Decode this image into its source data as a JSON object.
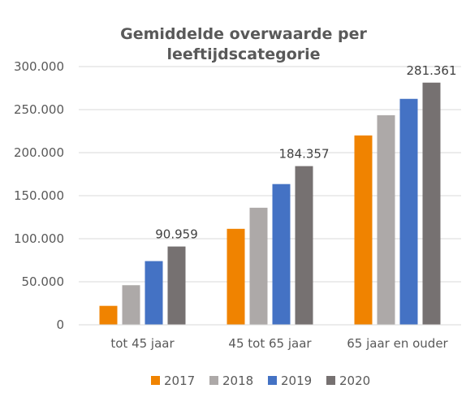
{
  "chart_data": {
    "type": "bar",
    "title_line1": "Gemiddelde overwaarde per",
    "title_line2": "leeftijdscategorie",
    "categories": [
      "tot 45 jaar",
      "45 tot 65 jaar",
      "65 jaar en ouder"
    ],
    "series": [
      {
        "name": "2017",
        "color": "#F08300",
        "values": [
          22000,
          111500,
          220000
        ]
      },
      {
        "name": "2018",
        "color": "#ADA9A8",
        "values": [
          46000,
          136000,
          243500
        ]
      },
      {
        "name": "2019",
        "color": "#4472C4",
        "values": [
          74000,
          163500,
          262500
        ]
      },
      {
        "name": "2020",
        "color": "#767171",
        "values": [
          90959,
          184357,
          281361
        ]
      }
    ],
    "data_labels": [
      {
        "category_index": 0,
        "series_index": 3,
        "text": "90.959"
      },
      {
        "category_index": 1,
        "series_index": 3,
        "text": "184.357"
      },
      {
        "category_index": 2,
        "series_index": 3,
        "text": "281.361"
      }
    ],
    "y_ticks": [
      {
        "value": 0,
        "label": "0"
      },
      {
        "value": 50000,
        "label": "50.000"
      },
      {
        "value": 100000,
        "label": "100.000"
      },
      {
        "value": 150000,
        "label": "150.000"
      },
      {
        "value": 200000,
        "label": "200.000"
      },
      {
        "value": 250000,
        "label": "250.000"
      },
      {
        "value": 300000,
        "label": "300.000"
      }
    ],
    "ylim": [
      0,
      300000
    ],
    "grid": true,
    "legend_position": "bottom"
  }
}
